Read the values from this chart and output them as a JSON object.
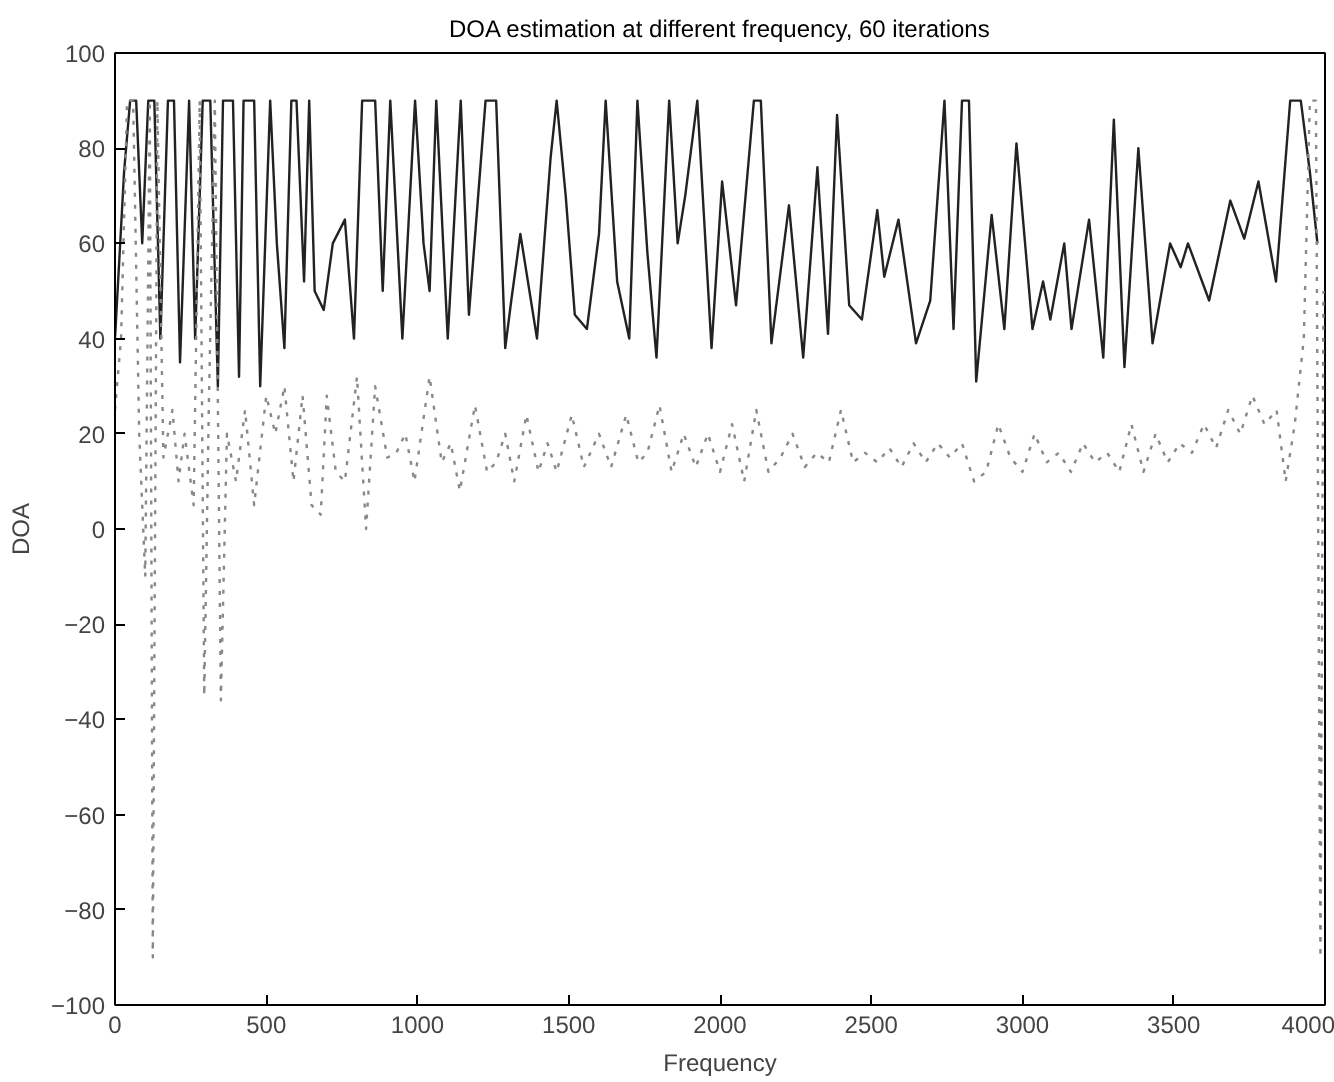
{
  "chart_data": {
    "type": "line",
    "title": "DOA estimation at different frequency, 60 iterations",
    "xlabel": "Frequency",
    "ylabel": "DOA",
    "xlim": [
      0,
      4000
    ],
    "xticks": [
      0,
      500,
      1000,
      1500,
      2000,
      2500,
      3000,
      3500,
      4000
    ],
    "ylim": [
      -100,
      100
    ],
    "yticks": [
      -100,
      -80,
      -60,
      -40,
      -20,
      0,
      20,
      40,
      60,
      80,
      100
    ],
    "grid": false,
    "marker": "none",
    "series": [
      {
        "color": "#222222",
        "line_style": "solid",
        "x": [
          0,
          30,
          50,
          70,
          90,
          110,
          130,
          150,
          175,
          195,
          215,
          245,
          265,
          290,
          315,
          340,
          357,
          390,
          410,
          425,
          460,
          480,
          513,
          535,
          560,
          583,
          600,
          625,
          642,
          660,
          690,
          720,
          760,
          790,
          817,
          860,
          885,
          910,
          950,
          992,
          1020,
          1040,
          1062,
          1100,
          1143,
          1170,
          1225,
          1260,
          1290,
          1310,
          1340,
          1370,
          1395,
          1440,
          1460,
          1490,
          1520,
          1560,
          1600,
          1622,
          1660,
          1700,
          1727,
          1760,
          1790,
          1832,
          1860,
          1885,
          1925,
          1972,
          2007,
          2053,
          2112,
          2135,
          2170,
          2228,
          2275,
          2322,
          2357,
          2387,
          2427,
          2469,
          2520,
          2543,
          2590,
          2648,
          2695,
          2742,
          2772,
          2800,
          2823,
          2847,
          2898,
          2940,
          2980,
          3033,
          3068,
          3092,
          3138,
          3162,
          3220,
          3267,
          3302,
          3337,
          3383,
          3430,
          3488,
          3523,
          3547,
          3617,
          3687,
          3733,
          3780,
          3838,
          3885,
          3920,
          3950,
          3975
        ],
        "values": [
          40,
          75,
          90,
          90,
          60,
          90,
          90,
          40,
          90,
          90,
          35,
          90,
          40,
          90,
          90,
          30,
          90,
          90,
          32,
          90,
          90,
          30,
          90,
          60,
          38,
          90,
          90,
          52,
          90,
          50,
          46,
          60,
          65,
          40,
          90,
          90,
          50,
          90,
          40,
          90,
          60,
          50,
          90,
          40,
          90,
          45,
          90,
          90,
          38,
          48,
          62,
          50,
          40,
          78,
          90,
          70,
          45,
          42,
          62,
          90,
          52,
          40,
          90,
          58,
          36,
          90,
          60,
          70,
          90,
          38,
          73,
          47,
          90,
          90,
          39,
          68,
          36,
          76,
          41,
          87,
          47,
          44,
          67,
          53,
          65,
          39,
          48,
          90,
          42,
          90,
          90,
          31,
          66,
          42,
          81,
          42,
          52,
          44,
          60,
          42,
          65,
          36,
          86,
          34,
          80,
          39,
          60,
          55,
          60,
          48,
          69,
          61,
          73,
          52,
          90,
          90,
          75,
          60
        ]
      },
      {
        "color": "#888888",
        "line_style": "dotted",
        "x": [
          0,
          20,
          40,
          60,
          80,
          100,
          115,
          125,
          140,
          160,
          190,
          210,
          230,
          260,
          280,
          295,
          310,
          330,
          350,
          370,
          400,
          430,
          460,
          500,
          530,
          560,
          590,
          620,
          650,
          680,
          700,
          730,
          760,
          800,
          830,
          860,
          900,
          930,
          960,
          990,
          1040,
          1080,
          1110,
          1140,
          1190,
          1230,
          1260,
          1290,
          1320,
          1360,
          1400,
          1430,
          1460,
          1510,
          1550,
          1600,
          1640,
          1690,
          1730,
          1760,
          1800,
          1840,
          1880,
          1920,
          1960,
          2000,
          2040,
          2080,
          2120,
          2160,
          2200,
          2240,
          2280,
          2320,
          2360,
          2400,
          2440,
          2480,
          2520,
          2560,
          2600,
          2640,
          2680,
          2720,
          2760,
          2800,
          2840,
          2880,
          2920,
          2960,
          3000,
          3040,
          3080,
          3120,
          3160,
          3200,
          3240,
          3280,
          3320,
          3360,
          3400,
          3440,
          3480,
          3520,
          3560,
          3600,
          3640,
          3680,
          3720,
          3760,
          3800,
          3840,
          3870,
          3900,
          3930,
          3950,
          3970,
          3985,
          3995
        ],
        "values": [
          25,
          40,
          90,
          90,
          20,
          -10,
          90,
          -90,
          90,
          15,
          25,
          10,
          20,
          5,
          90,
          -35,
          25,
          90,
          -36,
          20,
          10,
          25,
          5,
          28,
          20,
          30,
          10,
          28,
          5,
          3,
          28,
          12,
          10,
          32,
          0,
          30,
          15,
          16,
          20,
          10,
          32,
          14,
          18,
          8,
          26,
          12,
          14,
          20,
          10,
          24,
          12,
          18,
          12,
          24,
          13,
          20,
          13,
          24,
          14,
          16,
          26,
          12,
          20,
          13,
          20,
          12,
          22,
          10,
          25,
          12,
          15,
          20,
          13,
          16,
          14,
          25,
          14,
          16,
          14,
          17,
          13,
          18,
          14,
          18,
          15,
          18,
          10,
          12,
          22,
          15,
          12,
          20,
          14,
          16,
          12,
          18,
          14,
          16,
          12,
          22,
          12,
          20,
          14,
          18,
          16,
          22,
          17,
          25,
          20,
          28,
          22,
          25,
          10,
          22,
          40,
          90,
          90,
          -90,
          50
        ]
      }
    ]
  }
}
